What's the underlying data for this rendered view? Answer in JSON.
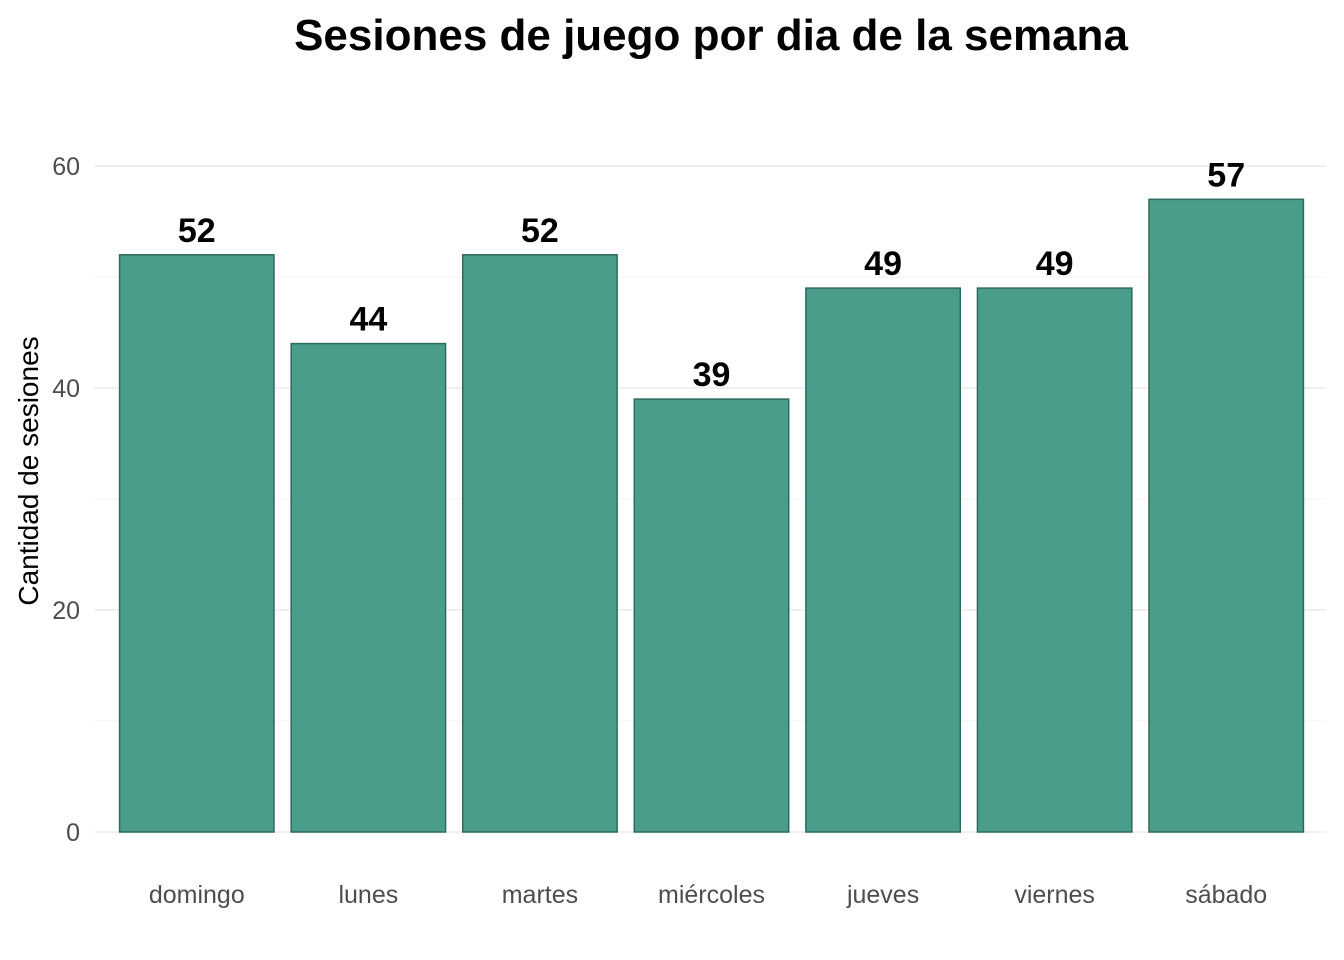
{
  "chart_data": {
    "type": "bar",
    "title": "Sesiones de juego por dia de la semana",
    "xlabel": "",
    "ylabel": "Cantidad de sesiones",
    "categories": [
      "domingo",
      "lunes",
      "martes",
      "miércoles",
      "jueves",
      "viernes",
      "sábado"
    ],
    "values": [
      52,
      44,
      52,
      39,
      49,
      49,
      57
    ],
    "data_labels": [
      "52",
      "44",
      "52",
      "39",
      "49",
      "49",
      "57"
    ],
    "ylim": [
      0,
      60
    ],
    "yticks": [
      0,
      20,
      40,
      60
    ],
    "ytick_labels": [
      "0",
      "20",
      "40",
      "60"
    ],
    "grid": true,
    "legend": "none",
    "colors": {
      "bar_fill": "#4a9d8b",
      "bar_stroke": "#2e6b5e",
      "grid": "#ebebeb",
      "background": "#ffffff"
    }
  }
}
